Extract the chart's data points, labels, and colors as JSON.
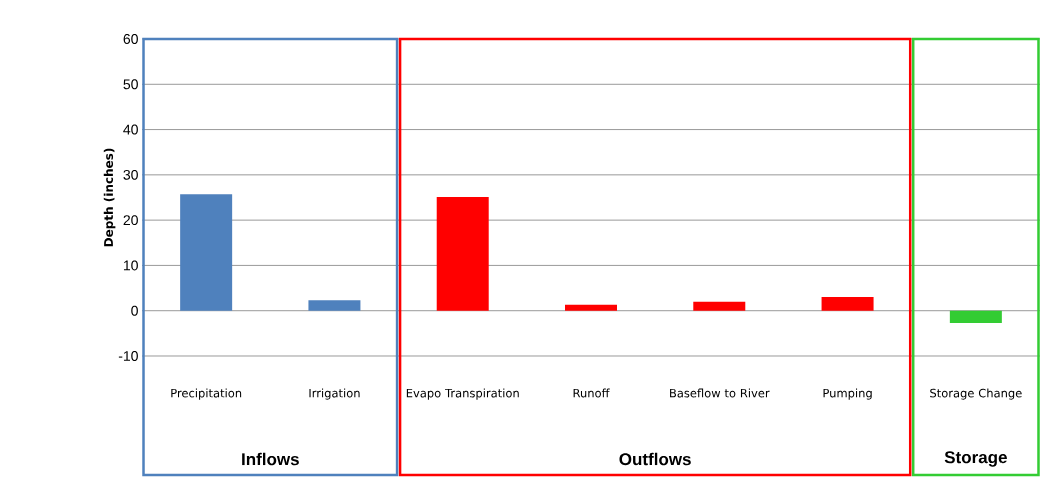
{
  "chart_data": {
    "type": "bar",
    "ylabel": "Depth (inches)",
    "categories": [
      "Precipitation",
      "Irrigation",
      "Evapo Transpiration",
      "Runoff",
      "Baseflow to River",
      "Pumping",
      "Storage Change"
    ],
    "values": [
      25.7,
      2.3,
      25.1,
      1.3,
      2.0,
      3.0,
      -2.7
    ],
    "colors": [
      "#4f81bd",
      "#4f81bd",
      "#ff0000",
      "#ff0000",
      "#ff0000",
      "#ff0000",
      "#33cc33"
    ],
    "ylim": [
      -10,
      60
    ],
    "yticks": [
      -10,
      0,
      10,
      20,
      30,
      40,
      50,
      60
    ],
    "grid": "y",
    "annotations": [
      "Inflows",
      "Outflows",
      "Storage"
    ]
  }
}
